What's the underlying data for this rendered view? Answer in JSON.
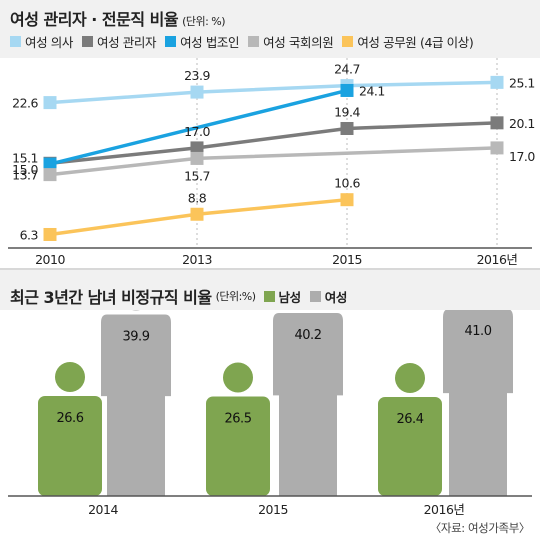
{
  "chart_data": [
    {
      "type": "line",
      "title": "여성 관리자 · 전문직 비율",
      "unit_label": "(단위: %)",
      "categories": [
        "2010",
        "2013",
        "2015",
        "2016년"
      ],
      "series": [
        {
          "name": "여성 의사",
          "color": "#a6d8f2",
          "values": [
            22.6,
            23.9,
            24.7,
            25.1
          ]
        },
        {
          "name": "여성 관리자",
          "color": "#7b7b7b",
          "values": [
            15.1,
            17.0,
            19.4,
            20.1
          ]
        },
        {
          "name": "여성 법조인",
          "color": "#1aa2e0",
          "values": [
            15.0,
            null,
            24.1,
            null
          ]
        },
        {
          "name": "여성 국회의원",
          "color": "#b8b8b8",
          "values": [
            13.7,
            15.7,
            null,
            17.0
          ]
        },
        {
          "name": "여성 공무원 (4급 이상)",
          "color": "#fbc45a",
          "values": [
            6.3,
            8.8,
            10.6,
            null
          ]
        }
      ],
      "labels": [
        {
          "text": "22.6",
          "series": 0,
          "index": 0,
          "pos": "left"
        },
        {
          "text": "23.9",
          "series": 0,
          "index": 1,
          "pos": "above"
        },
        {
          "text": "24.7",
          "series": 0,
          "index": 2,
          "pos": "above"
        },
        {
          "text": "25.1",
          "series": 0,
          "index": 3,
          "pos": "right"
        },
        {
          "text": "15.1",
          "series": 1,
          "index": 0,
          "pos": "left-up"
        },
        {
          "text": "17.0",
          "series": 1,
          "index": 1,
          "pos": "above"
        },
        {
          "text": "19.4",
          "series": 1,
          "index": 2,
          "pos": "above"
        },
        {
          "text": "20.1",
          "series": 1,
          "index": 3,
          "pos": "right"
        },
        {
          "text": "15.0",
          "series": 2,
          "index": 0,
          "pos": "left-down"
        },
        {
          "text": "24.1",
          "series": 2,
          "index": 2,
          "pos": "right"
        },
        {
          "text": "13.7",
          "series": 3,
          "index": 0,
          "pos": "left"
        },
        {
          "text": "15.7",
          "series": 3,
          "index": 1,
          "pos": "below"
        },
        {
          "text": "17.0",
          "series": 3,
          "index": 3,
          "pos": "right-down"
        },
        {
          "text": "6.3",
          "series": 4,
          "index": 0,
          "pos": "left"
        },
        {
          "text": "8.8",
          "series": 4,
          "index": 1,
          "pos": "above"
        },
        {
          "text": "10.6",
          "series": 4,
          "index": 2,
          "pos": "above"
        }
      ],
      "ylim": [
        5,
        27
      ],
      "legend": "top"
    },
    {
      "type": "bar",
      "title": "최근 3년간 남녀 비정규직 비율",
      "unit_label": "(단위:%)",
      "categories": [
        "2014",
        "2015",
        "2016년"
      ],
      "series": [
        {
          "name": "남성",
          "color": "#7fa550",
          "values": [
            26.6,
            26.5,
            26.4
          ]
        },
        {
          "name": "여성",
          "color": "#adadad",
          "values": [
            39.9,
            40.2,
            41.0
          ]
        }
      ],
      "legend": "top"
    }
  ],
  "source": "〈자료: 여성가족부〉"
}
